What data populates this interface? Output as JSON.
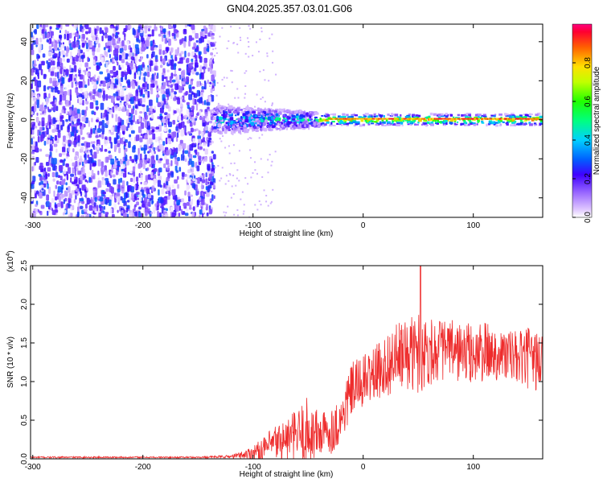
{
  "title": "GN04.2025.357.03.01.G06",
  "chart_data": [
    {
      "type": "heatmap",
      "title": "GN04.2025.357.03.01.G06",
      "xlabel": "Height of straight line (km)",
      "ylabel": "Frequency (Hz)",
      "xlim": [
        -302,
        163
      ],
      "ylim": [
        -50,
        49
      ],
      "xticks": [
        -300,
        -200,
        -100,
        0,
        100
      ],
      "yticks": [
        -40,
        -20,
        0,
        20,
        40
      ],
      "regions": [
        {
          "x_from": -302,
          "x_to": -135,
          "description": "broadband noise",
          "amplitude_range": [
            0.0,
            0.3
          ]
        },
        {
          "x_from": -135,
          "x_to": -40,
          "description": "scattered signal near 0 Hz",
          "amplitude_range": [
            0.2,
            0.6
          ]
        },
        {
          "x_from": -40,
          "x_to": 163,
          "description": "narrow carrier line at 0 Hz",
          "amplitude_range": [
            0.6,
            0.9
          ]
        }
      ],
      "colorbar": {
        "label": "Normalized spectral amplitude",
        "range": [
          0.0,
          1.0
        ],
        "ticks": [
          0.0,
          0.2,
          0.4,
          0.6,
          0.8
        ]
      }
    },
    {
      "type": "line",
      "xlabel": "Height of straight line (km)",
      "ylabel": "SNR (10 * v/v)",
      "exponent_label": "(x10",
      "exponent_value": "4",
      "exponent_close": ")",
      "xlim": [
        -302,
        163
      ],
      "ylim": [
        0.0,
        2.5
      ],
      "xticks": [
        -300,
        -200,
        -100,
        0,
        100
      ],
      "yticks": [
        0.0,
        0.5,
        1.0,
        1.5,
        2.0,
        2.5
      ],
      "series": [
        {
          "name": "SNR",
          "color": "#ee2c2c",
          "x": [
            -302,
            -150,
            -120,
            -110,
            -100,
            -90,
            -80,
            -70,
            -60,
            -50,
            -40,
            -30,
            -20,
            -15,
            -10,
            0,
            10,
            20,
            30,
            40,
            50,
            60,
            70,
            80,
            90,
            100,
            110,
            120,
            130,
            140,
            150,
            163
          ],
          "mean": [
            0.02,
            0.02,
            0.03,
            0.05,
            0.08,
            0.13,
            0.2,
            0.25,
            0.3,
            0.33,
            0.32,
            0.35,
            0.5,
            0.72,
            0.9,
            1.0,
            1.1,
            1.2,
            1.3,
            1.35,
            1.38,
            1.4,
            1.42,
            1.4,
            1.38,
            1.35,
            1.38,
            1.36,
            1.35,
            1.3,
            1.3,
            1.25
          ],
          "spread": [
            0.01,
            0.01,
            0.02,
            0.05,
            0.1,
            0.15,
            0.25,
            0.28,
            0.35,
            0.5,
            0.3,
            0.3,
            0.3,
            0.35,
            0.35,
            0.35,
            0.35,
            0.4,
            0.45,
            0.45,
            0.55,
            0.45,
            0.4,
            0.4,
            0.4,
            0.4,
            0.4,
            0.35,
            0.35,
            0.35,
            0.4,
            0.4
          ],
          "peak": {
            "x": 52,
            "y": 2.5
          }
        }
      ]
    }
  ],
  "colors": {
    "axes": "#000000",
    "signal": "#ee2c2c",
    "noise": "#7a30e0"
  }
}
